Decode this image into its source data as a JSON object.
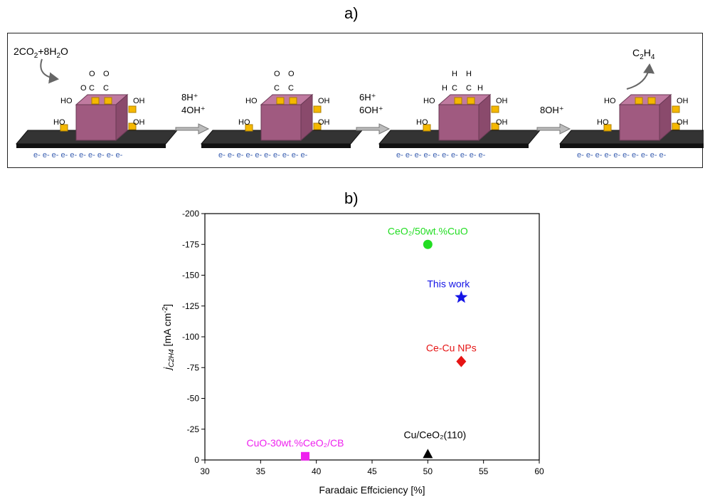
{
  "panel_a": {
    "label": "a)",
    "reactant": {
      "main": "2CO",
      "sub1": "2",
      "mid": "+8H",
      "sub2": "2",
      "tail": "O"
    },
    "product": {
      "main": "C",
      "sub1": "2",
      "mid": "H",
      "sub2": "4",
      "tail": ""
    },
    "arrows": [
      {
        "line1": "8H⁺",
        "line2": "4OH⁺"
      },
      {
        "line1": "6H⁺",
        "line2": "6OH⁺"
      },
      {
        "line1": "8OH⁺",
        "line2": ""
      }
    ],
    "electrons": "e- e- e- e- e- e- e- e- e- e-",
    "oh": "OH",
    "ho": "HO",
    "atoms": {
      "c": "C",
      "o": "O",
      "h": "H"
    }
  },
  "panel_b": {
    "label": "b)"
  },
  "chart_data": {
    "type": "scatter",
    "xlabel": "Faradaic Effciciency [%]",
    "ylabel": {
      "j": "j",
      "sub": "C2H4",
      "rest": " [mA cm",
      "sup": "-2",
      "close": "]"
    },
    "xlim": [
      30,
      60
    ],
    "ylim": [
      0,
      -200
    ],
    "xticks": [
      30,
      35,
      40,
      45,
      50,
      55,
      60
    ],
    "yticks": [
      0,
      -25,
      -50,
      -75,
      -100,
      -125,
      -150,
      -175,
      -200
    ],
    "grid": false,
    "points": [
      {
        "label": "CeO₂/50wt.%CuO",
        "x": 50,
        "y": -175,
        "marker": "circle",
        "color": "#22dd22"
      },
      {
        "label": "This work",
        "x": 53,
        "y": -132,
        "marker": "star",
        "color": "#1414e6"
      },
      {
        "label": "Ce-Cu NPs",
        "x": 53,
        "y": -80,
        "marker": "diamond",
        "color": "#e61414"
      },
      {
        "label": "CuO-30wt.%CeO₂/CB",
        "x": 39,
        "y": -3,
        "marker": "square",
        "color": "#ee22ee"
      },
      {
        "label": "Cu/CeO₂(110)",
        "x": 50,
        "y": -5,
        "marker": "triangle",
        "color": "#000000"
      }
    ]
  }
}
